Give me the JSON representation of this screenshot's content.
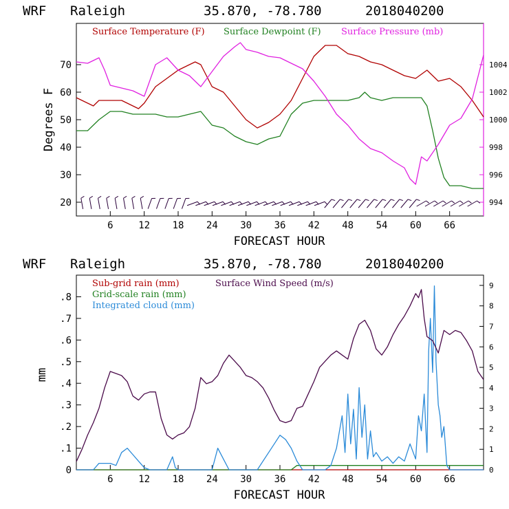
{
  "chart_data": [
    {
      "type": "line",
      "header": {
        "model": "WRF",
        "station": "Raleigh",
        "coords": "35.870, -78.780",
        "run": "2018040200"
      },
      "xlabel": "FORECAST HOUR",
      "ylabel": "Degrees F",
      "xlim": [
        0,
        72
      ],
      "ylim": [
        15,
        85
      ],
      "ylim_right": [
        993,
        1007
      ],
      "x_ticks": [
        "6",
        "12",
        "18",
        "24",
        "30",
        "36",
        "42",
        "48",
        "54",
        "60",
        "66"
      ],
      "y_ticks": [
        "20",
        "30",
        "40",
        "50",
        "60",
        "70"
      ],
      "y_ticks_right": [
        "994",
        "996",
        "998",
        "1000",
        "1002",
        "1004"
      ],
      "series": [
        {
          "name": "Surface Temperature (F)",
          "color": "#b00000",
          "axis": "left",
          "x": [
            0,
            3,
            4,
            6,
            8,
            10,
            11,
            12,
            14,
            16,
            18,
            20,
            21,
            22,
            24,
            26,
            28,
            30,
            32,
            34,
            36,
            38,
            40,
            42,
            44,
            46,
            48,
            50,
            52,
            54,
            56,
            58,
            60,
            62,
            64,
            66,
            68,
            70,
            72
          ],
          "y": [
            58,
            55,
            57,
            57,
            57,
            55,
            54,
            56,
            62,
            65,
            68,
            70,
            71,
            70,
            62,
            60,
            55,
            50,
            47,
            49,
            52,
            57,
            65,
            73,
            77,
            77,
            74,
            73,
            71,
            70,
            68,
            66,
            65,
            68,
            64,
            65,
            62,
            57,
            51
          ]
        },
        {
          "name": "Surface Dewpoint (F)",
          "color": "#208020",
          "axis": "left",
          "x": [
            0,
            2,
            4,
            6,
            8,
            10,
            12,
            14,
            16,
            18,
            20,
            22,
            24,
            26,
            28,
            30,
            32,
            34,
            36,
            38,
            40,
            42,
            44,
            46,
            48,
            50,
            51,
            52,
            54,
            56,
            58,
            60,
            61,
            62,
            63,
            64,
            65,
            66,
            68,
            70,
            72
          ],
          "y": [
            46,
            46,
            50,
            53,
            53,
            52,
            52,
            52,
            51,
            51,
            52,
            53,
            48,
            47,
            44,
            42,
            41,
            43,
            44,
            52,
            56,
            57,
            57,
            57,
            57,
            58,
            60,
            58,
            57,
            58,
            58,
            58,
            58,
            55,
            46,
            36,
            29,
            26,
            26,
            25,
            25
          ]
        },
        {
          "name": "Surface Pressure (mb)",
          "color": "#e020e0",
          "axis": "right",
          "x": [
            0,
            2,
            4,
            5,
            6,
            8,
            10,
            12,
            14,
            16,
            18,
            20,
            22,
            24,
            26,
            28,
            29,
            30,
            32,
            34,
            36,
            38,
            40,
            42,
            44,
            46,
            48,
            50,
            52,
            54,
            56,
            58,
            59,
            60,
            61,
            62,
            64,
            66,
            68,
            70,
            72
          ],
          "y": [
            1004.2,
            1004.1,
            1004.5,
            1003.6,
            1002.5,
            1002.3,
            1002.1,
            1001.7,
            1004.0,
            1004.5,
            1003.6,
            1003.2,
            1002.4,
            1003.5,
            1004.6,
            1005.3,
            1005.6,
            1005.1,
            1004.9,
            1004.6,
            1004.5,
            1004.1,
            1003.7,
            1002.8,
            1001.7,
            1000.4,
            999.6,
            998.6,
            997.9,
            997.6,
            997.0,
            996.5,
            995.7,
            995.3,
            997.3,
            997.0,
            998.2,
            999.6,
            1000.1,
            1001.5,
            1004.7
          ]
        }
      ],
      "wind_barbs": "row of wind barbs along the bottom of the panel"
    },
    {
      "type": "line",
      "header": {
        "model": "WRF",
        "station": "Raleigh",
        "coords": "35.870, -78.780",
        "run": "2018040200"
      },
      "xlabel": "FORECAST HOUR",
      "ylabel": "mm",
      "xlim": [
        0,
        72
      ],
      "ylim": [
        0,
        0.9
      ],
      "ylim_right": [
        0,
        9.5
      ],
      "x_ticks": [
        "6",
        "12",
        "18",
        "24",
        "30",
        "36",
        "42",
        "48",
        "54",
        "60",
        "66"
      ],
      "y_ticks": [
        "0",
        ".1",
        ".2",
        ".3",
        ".4",
        ".5",
        ".6",
        ".7",
        ".8"
      ],
      "y_ticks_right": [
        "0",
        "1",
        "2",
        "3",
        "4",
        "5",
        "6",
        "7",
        "8",
        "9"
      ],
      "series": [
        {
          "name": "Sub-grid rain (mm)",
          "color": "#b00000",
          "axis": "left",
          "x": [
            0,
            72
          ],
          "y": [
            0,
            0
          ]
        },
        {
          "name": "Grid-scale rain (mm)",
          "color": "#208020",
          "axis": "left",
          "x": [
            0,
            38,
            39,
            72
          ],
          "y": [
            0,
            0,
            0.02,
            0.02
          ]
        },
        {
          "name": "Integrated cloud (mm)",
          "color": "#2a8ad8",
          "axis": "left",
          "x": [
            0,
            3,
            4,
            6,
            7,
            8,
            9,
            10,
            11,
            12,
            13,
            16,
            17,
            17.5,
            18,
            24,
            25,
            26,
            27,
            32,
            34,
            35,
            36,
            37,
            38,
            39,
            40,
            41,
            42,
            44,
            45,
            46,
            47,
            47.5,
            48,
            48.5,
            49,
            49.5,
            50,
            50.5,
            51,
            51.5,
            52,
            52.5,
            53,
            54,
            55,
            56,
            57,
            58,
            59,
            60,
            60.5,
            61,
            61.5,
            62,
            62.3,
            62.6,
            63,
            63.3,
            63.6,
            64,
            64.3,
            64.6,
            65,
            65.5,
            66,
            67,
            72
          ],
          "y": [
            0,
            0,
            0.03,
            0.03,
            0.02,
            0.08,
            0.1,
            0.07,
            0.04,
            0.01,
            0,
            0,
            0.06,
            0.01,
            0,
            0,
            0.1,
            0.05,
            0,
            0,
            0.08,
            0.12,
            0.16,
            0.14,
            0.1,
            0.04,
            0,
            0,
            0,
            0,
            0.02,
            0.1,
            0.25,
            0.08,
            0.35,
            0.12,
            0.28,
            0.05,
            0.38,
            0.15,
            0.3,
            0.05,
            0.18,
            0.06,
            0.08,
            0.04,
            0.06,
            0.03,
            0.06,
            0.04,
            0.12,
            0.05,
            0.25,
            0.18,
            0.35,
            0.08,
            0.55,
            0.7,
            0.45,
            0.85,
            0.5,
            0.3,
            0.25,
            0.15,
            0.2,
            0.02,
            0,
            0,
            0
          ]
        },
        {
          "name": "Surface Wind Speed (m/s)",
          "color": "#4a0a4a",
          "axis": "right",
          "x": [
            0,
            1,
            2,
            3,
            4,
            5,
            6,
            7,
            8,
            9,
            10,
            11,
            12,
            13,
            14,
            15,
            16,
            17,
            18,
            19,
            20,
            21,
            22,
            23,
            24,
            25,
            26,
            27,
            28,
            29,
            30,
            31,
            32,
            33,
            34,
            35,
            36,
            37,
            38,
            39,
            40,
            41,
            42,
            43,
            44,
            45,
            46,
            47,
            48,
            49,
            50,
            51,
            52,
            53,
            54,
            55,
            56,
            57,
            58,
            59,
            60,
            60.5,
            61,
            61.5,
            62,
            63,
            64,
            65,
            66,
            67,
            68,
            69,
            70,
            71,
            72
          ],
          "y": [
            0.4,
            1,
            1.7,
            2.3,
            3,
            4,
            4.8,
            4.7,
            4.6,
            4.3,
            3.6,
            3.4,
            3.7,
            3.8,
            3.8,
            2.5,
            1.7,
            1.5,
            1.7,
            1.8,
            2.1,
            3,
            4.5,
            4.2,
            4.3,
            4.6,
            5.2,
            5.6,
            5.3,
            5,
            4.6,
            4.5,
            4.3,
            4,
            3.5,
            2.9,
            2.4,
            2.3,
            2.4,
            3,
            3.1,
            3.7,
            4.3,
            5,
            5.3,
            5.6,
            5.8,
            5.6,
            5.4,
            6.4,
            7.1,
            7.3,
            6.8,
            5.9,
            5.6,
            6,
            6.6,
            7.1,
            7.5,
            8,
            8.6,
            8.4,
            8.8,
            7.4,
            6.5,
            6.3,
            5.7,
            6.8,
            6.6,
            6.8,
            6.7,
            6.3,
            5.8,
            4.8,
            4.4
          ]
        }
      ]
    }
  ]
}
